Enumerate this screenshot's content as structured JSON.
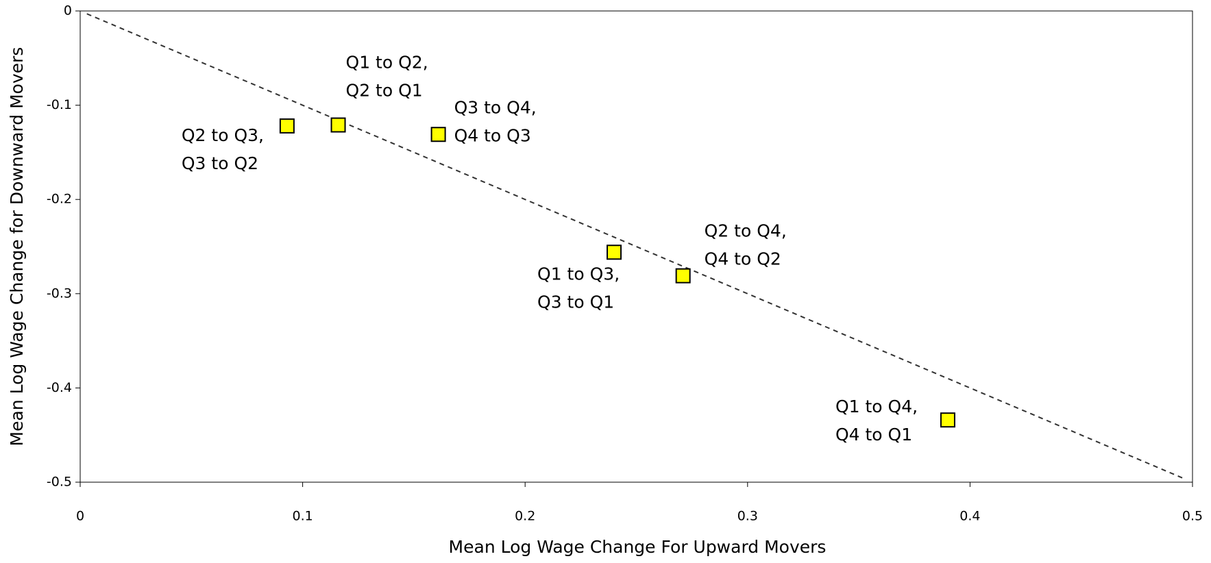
{
  "chart_data": {
    "type": "scatter",
    "x_label": "Mean Log Wage Change For Upward Movers",
    "y_label": "Mean Log Wage Change for Downward Movers",
    "x": [
      0.093,
      0.116,
      0.161,
      0.24,
      0.271,
      0.39
    ],
    "values": [
      -0.122,
      -0.121,
      -0.131,
      -0.256,
      -0.281,
      -0.434
    ],
    "point_labels": [
      [
        "Q2 to Q3,",
        "Q3 to Q2"
      ],
      [
        "Q1 to Q2,",
        "Q2 to Q1"
      ],
      [
        "Q3 to Q4,",
        "Q4 to Q3"
      ],
      [
        "Q1 to Q3,",
        "Q3 to Q1"
      ],
      [
        "Q2 to Q4,",
        "Q4 to Q2"
      ],
      [
        "Q1 to Q4,",
        "Q4 to Q1"
      ]
    ],
    "color": "#ffff00",
    "reference_line": {
      "x": [
        0.003,
        0.497
      ],
      "y": [
        -0.003,
        -0.497
      ]
    },
    "xlim": [
      0,
      0.5
    ],
    "ylim": [
      -0.5,
      0
    ],
    "xticks": [
      0,
      0.1,
      0.2,
      0.3,
      0.4,
      0.5
    ],
    "yticks": [
      0,
      -0.1,
      -0.2,
      -0.3,
      -0.4,
      -0.5
    ]
  }
}
